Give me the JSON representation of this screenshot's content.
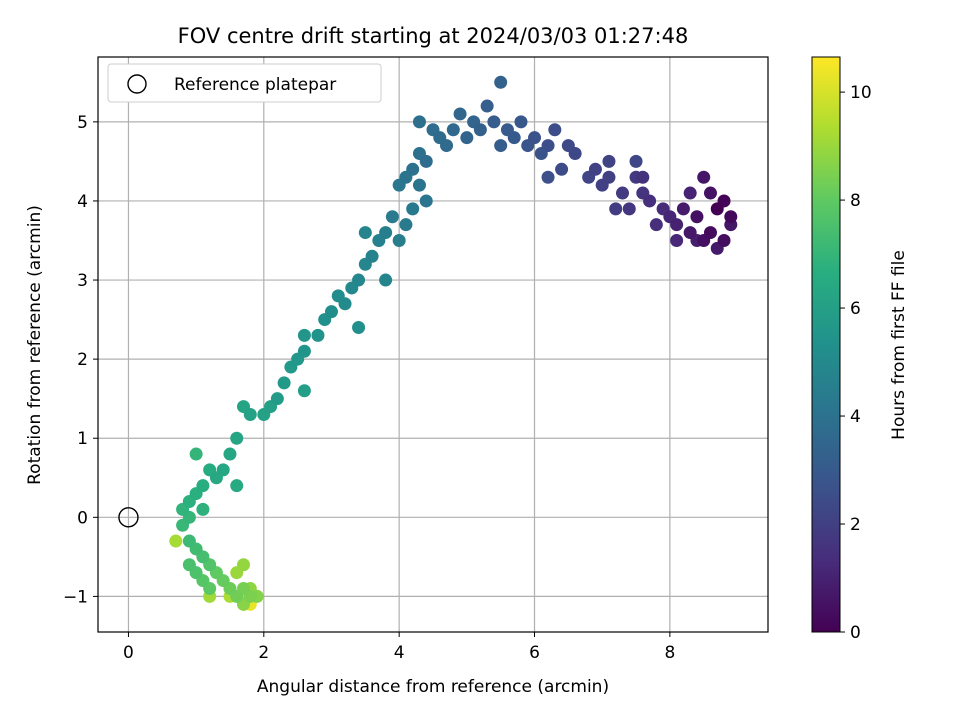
{
  "chart_data": {
    "type": "scatter",
    "title": "FOV centre drift starting at 2024/03/03 01:27:48",
    "xlabel": "Angular distance from reference (arcmin)",
    "ylabel": "Rotation from reference (arcmin)",
    "xlim": [
      -0.45,
      9.45
    ],
    "ylim": [
      -1.45,
      5.82
    ],
    "xticks": [
      0,
      2,
      4,
      6,
      8
    ],
    "yticks": [
      -1,
      0,
      1,
      2,
      3,
      4,
      5
    ],
    "grid": true,
    "legend": {
      "placement": "upper-left",
      "entries": [
        {
          "label": "Reference platepar",
          "marker": "open-circle"
        }
      ]
    },
    "reference_point": {
      "x": 0,
      "y": 0
    },
    "colorbar": {
      "label": "Hours from first FF file",
      "colormap": "viridis",
      "range": [
        0,
        10.65
      ],
      "ticks": [
        0,
        2,
        4,
        6,
        8,
        10
      ]
    },
    "series": [
      {
        "color_by": "hours",
        "points": [
          [
            8.7,
            3.9,
            0.0
          ],
          [
            8.8,
            4.0,
            0.1
          ],
          [
            8.9,
            3.8,
            0.2
          ],
          [
            8.6,
            3.6,
            0.3
          ],
          [
            8.8,
            3.5,
            0.35
          ],
          [
            8.5,
            3.5,
            0.45
          ],
          [
            8.4,
            3.8,
            0.5
          ],
          [
            8.6,
            4.1,
            0.55
          ],
          [
            8.9,
            3.7,
            0.6
          ],
          [
            8.5,
            4.3,
            0.65
          ],
          [
            8.3,
            3.6,
            0.7
          ],
          [
            8.7,
            3.4,
            0.75
          ],
          [
            8.2,
            3.9,
            0.8
          ],
          [
            8.4,
            3.5,
            0.9
          ],
          [
            8.1,
            3.7,
            1.0
          ],
          [
            8.3,
            4.1,
            1.05
          ],
          [
            8.0,
            3.8,
            1.1
          ],
          [
            8.1,
            3.5,
            1.2
          ],
          [
            7.9,
            3.9,
            1.3
          ],
          [
            7.7,
            4.0,
            1.4
          ],
          [
            7.8,
            3.7,
            1.45
          ],
          [
            7.6,
            4.3,
            1.5
          ],
          [
            7.6,
            4.1,
            1.6
          ],
          [
            7.4,
            3.9,
            1.7
          ],
          [
            7.5,
            4.3,
            1.75
          ],
          [
            7.3,
            4.1,
            1.8
          ],
          [
            7.2,
            3.9,
            1.9
          ],
          [
            7.1,
            4.3,
            2.0
          ],
          [
            7.0,
            4.2,
            2.05
          ],
          [
            6.9,
            4.4,
            2.1
          ],
          [
            7.1,
            4.5,
            2.15
          ],
          [
            6.8,
            4.3,
            2.2
          ],
          [
            7.5,
            4.5,
            2.25
          ],
          [
            6.6,
            4.6,
            2.3
          ],
          [
            6.5,
            4.7,
            2.35
          ],
          [
            6.4,
            4.4,
            2.4
          ],
          [
            6.3,
            4.9,
            2.5
          ],
          [
            6.2,
            4.7,
            2.55
          ],
          [
            6.2,
            4.3,
            2.6
          ],
          [
            6.0,
            4.8,
            2.7
          ],
          [
            6.1,
            4.6,
            2.75
          ],
          [
            5.9,
            4.7,
            2.8
          ],
          [
            5.8,
            5.0,
            2.9
          ],
          [
            5.7,
            4.8,
            3.0
          ],
          [
            5.6,
            4.9,
            3.05
          ],
          [
            5.4,
            5.0,
            3.1
          ],
          [
            5.5,
            4.7,
            3.15
          ],
          [
            5.3,
            5.2,
            3.2
          ],
          [
            5.2,
            4.9,
            3.3
          ],
          [
            5.5,
            5.5,
            3.35
          ],
          [
            5.1,
            5.0,
            3.4
          ],
          [
            5.0,
            4.8,
            3.45
          ],
          [
            4.9,
            5.1,
            3.5
          ],
          [
            4.8,
            4.9,
            3.6
          ],
          [
            4.7,
            4.7,
            3.65
          ],
          [
            4.6,
            4.8,
            3.7
          ],
          [
            4.5,
            4.9,
            3.75
          ],
          [
            4.4,
            4.5,
            3.8
          ],
          [
            4.3,
            5.0,
            3.85
          ],
          [
            4.3,
            4.6,
            3.9
          ],
          [
            4.2,
            4.4,
            4.0
          ],
          [
            4.1,
            4.3,
            4.05
          ],
          [
            4.3,
            4.2,
            4.1
          ],
          [
            4.4,
            4.0,
            4.15
          ],
          [
            4.0,
            4.2,
            4.2
          ],
          [
            4.2,
            3.9,
            4.3
          ],
          [
            4.1,
            3.7,
            4.35
          ],
          [
            3.9,
            3.8,
            4.4
          ],
          [
            4.0,
            3.5,
            4.5
          ],
          [
            3.8,
            3.6,
            4.55
          ],
          [
            3.7,
            3.5,
            4.6
          ],
          [
            3.6,
            3.3,
            4.7
          ],
          [
            3.5,
            3.6,
            4.75
          ],
          [
            3.8,
            3.0,
            4.8
          ],
          [
            3.5,
            3.2,
            4.85
          ],
          [
            3.4,
            3.0,
            4.9
          ],
          [
            3.3,
            2.9,
            5.0
          ],
          [
            3.2,
            2.7,
            5.05
          ],
          [
            3.1,
            2.8,
            5.1
          ],
          [
            3.0,
            2.6,
            5.2
          ],
          [
            3.4,
            2.4,
            5.25
          ],
          [
            2.9,
            2.5,
            5.3
          ],
          [
            2.8,
            2.3,
            5.4
          ],
          [
            2.6,
            2.1,
            5.5
          ],
          [
            2.6,
            2.3,
            5.55
          ],
          [
            2.5,
            2.0,
            5.6
          ],
          [
            2.4,
            1.9,
            5.7
          ],
          [
            2.3,
            1.7,
            5.75
          ],
          [
            2.2,
            1.5,
            5.8
          ],
          [
            2.6,
            1.6,
            5.9
          ],
          [
            2.1,
            1.4,
            6.0
          ],
          [
            2.0,
            1.3,
            6.05
          ],
          [
            1.8,
            1.3,
            6.1
          ],
          [
            1.7,
            1.4,
            6.15
          ],
          [
            1.6,
            1.0,
            6.2
          ],
          [
            1.5,
            0.8,
            6.3
          ],
          [
            1.4,
            0.6,
            6.35
          ],
          [
            1.3,
            0.5,
            6.4
          ],
          [
            1.6,
            0.4,
            6.45
          ],
          [
            1.2,
            0.6,
            6.5
          ],
          [
            1.1,
            0.4,
            6.6
          ],
          [
            1.0,
            0.3,
            6.7
          ],
          [
            0.9,
            0.2,
            6.75
          ],
          [
            1.1,
            0.1,
            6.8
          ],
          [
            0.8,
            0.1,
            6.9
          ],
          [
            1.0,
            0.8,
            6.95
          ],
          [
            0.9,
            0.0,
            7.0
          ],
          [
            0.8,
            -0.1,
            7.1
          ],
          [
            0.9,
            -0.3,
            7.2
          ],
          [
            1.0,
            -0.4,
            7.3
          ],
          [
            1.1,
            -0.5,
            7.4
          ],
          [
            0.9,
            -0.6,
            7.5
          ],
          [
            1.0,
            -0.7,
            7.6
          ],
          [
            1.2,
            -0.6,
            7.7
          ],
          [
            1.1,
            -0.8,
            7.8
          ],
          [
            1.2,
            -0.9,
            7.9
          ],
          [
            1.3,
            -0.7,
            8.0
          ],
          [
            1.4,
            -0.8,
            8.1
          ],
          [
            1.5,
            -0.9,
            8.2
          ],
          [
            1.6,
            -1.0,
            8.3
          ],
          [
            1.7,
            -0.9,
            8.4
          ],
          [
            1.8,
            -1.0,
            8.5
          ],
          [
            1.9,
            -1.0,
            8.6
          ],
          [
            1.7,
            -1.1,
            8.7
          ],
          [
            1.8,
            -0.9,
            8.8
          ],
          [
            1.7,
            -0.6,
            8.9
          ],
          [
            1.6,
            -0.7,
            9.0
          ],
          [
            1.2,
            -1.0,
            9.1
          ],
          [
            0.7,
            -0.3,
            9.2
          ],
          [
            1.5,
            -1.0,
            9.3
          ],
          [
            1.8,
            -1.0,
            9.5
          ],
          [
            1.9,
            -1.0,
            9.8
          ],
          [
            1.7,
            -1.0,
            10.0
          ],
          [
            1.8,
            -1.1,
            10.3
          ],
          [
            1.7,
            -1.1,
            10.6
          ]
        ]
      }
    ]
  }
}
